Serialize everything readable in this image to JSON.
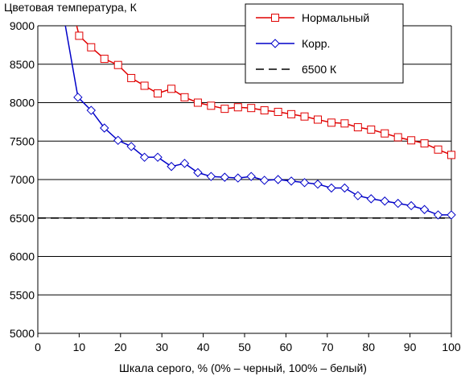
{
  "chart_data": {
    "type": "line",
    "ylabel": "Цветовая температура, К",
    "xlabel": "Шкала серого, % (0% – черный, 100% – белый)",
    "xlim": [
      0,
      100
    ],
    "ylim": [
      5000,
      9000
    ],
    "xticks": [
      0,
      10,
      20,
      30,
      40,
      50,
      60,
      70,
      80,
      90,
      100
    ],
    "yticks": [
      5000,
      5500,
      6000,
      6500,
      7000,
      7500,
      8000,
      8500,
      9000
    ],
    "grid": "horizontal",
    "legend": "top-right",
    "series": [
      {
        "name": "Нормальный",
        "color": "#e00000",
        "marker": "square",
        "x": [
          5,
          10,
          12.9,
          16.1,
          19.4,
          22.6,
          25.8,
          29,
          32.3,
          35.5,
          38.7,
          41.9,
          45.2,
          48.4,
          51.6,
          54.8,
          58.1,
          61.3,
          64.5,
          67.7,
          71,
          74.2,
          77.4,
          80.6,
          83.9,
          87.1,
          90.3,
          93.5,
          96.8,
          100
        ],
        "values": [
          9950,
          8870,
          8720,
          8570,
          8490,
          8320,
          8220,
          8120,
          8180,
          8070,
          8000,
          7960,
          7920,
          7940,
          7930,
          7900,
          7880,
          7850,
          7820,
          7780,
          7740,
          7730,
          7680,
          7650,
          7600,
          7550,
          7510,
          7470,
          7390,
          7320
        ]
      },
      {
        "name": "Корр.",
        "color": "#0000c8",
        "marker": "diamond",
        "x": [
          6.5,
          9.7,
          12.9,
          16.1,
          19.4,
          22.6,
          25.8,
          29,
          32.3,
          35.5,
          38.7,
          41.9,
          45.2,
          48.4,
          51.6,
          54.8,
          58.1,
          61.3,
          64.5,
          67.7,
          71,
          74.2,
          77.4,
          80.6,
          83.9,
          87.1,
          90.3,
          93.5,
          96.8,
          100
        ],
        "values": [
          9050,
          8070,
          7900,
          7670,
          7510,
          7430,
          7290,
          7290,
          7170,
          7210,
          7090,
          7040,
          7030,
          7020,
          7040,
          6990,
          7000,
          6980,
          6960,
          6940,
          6890,
          6890,
          6790,
          6750,
          6720,
          6690,
          6660,
          6610,
          6540,
          6540
        ]
      },
      {
        "name": "6500 К",
        "color": "#000000",
        "marker": "none",
        "dash": "dashed",
        "x": [
          0,
          100
        ],
        "values": [
          6500,
          6500
        ]
      }
    ]
  }
}
